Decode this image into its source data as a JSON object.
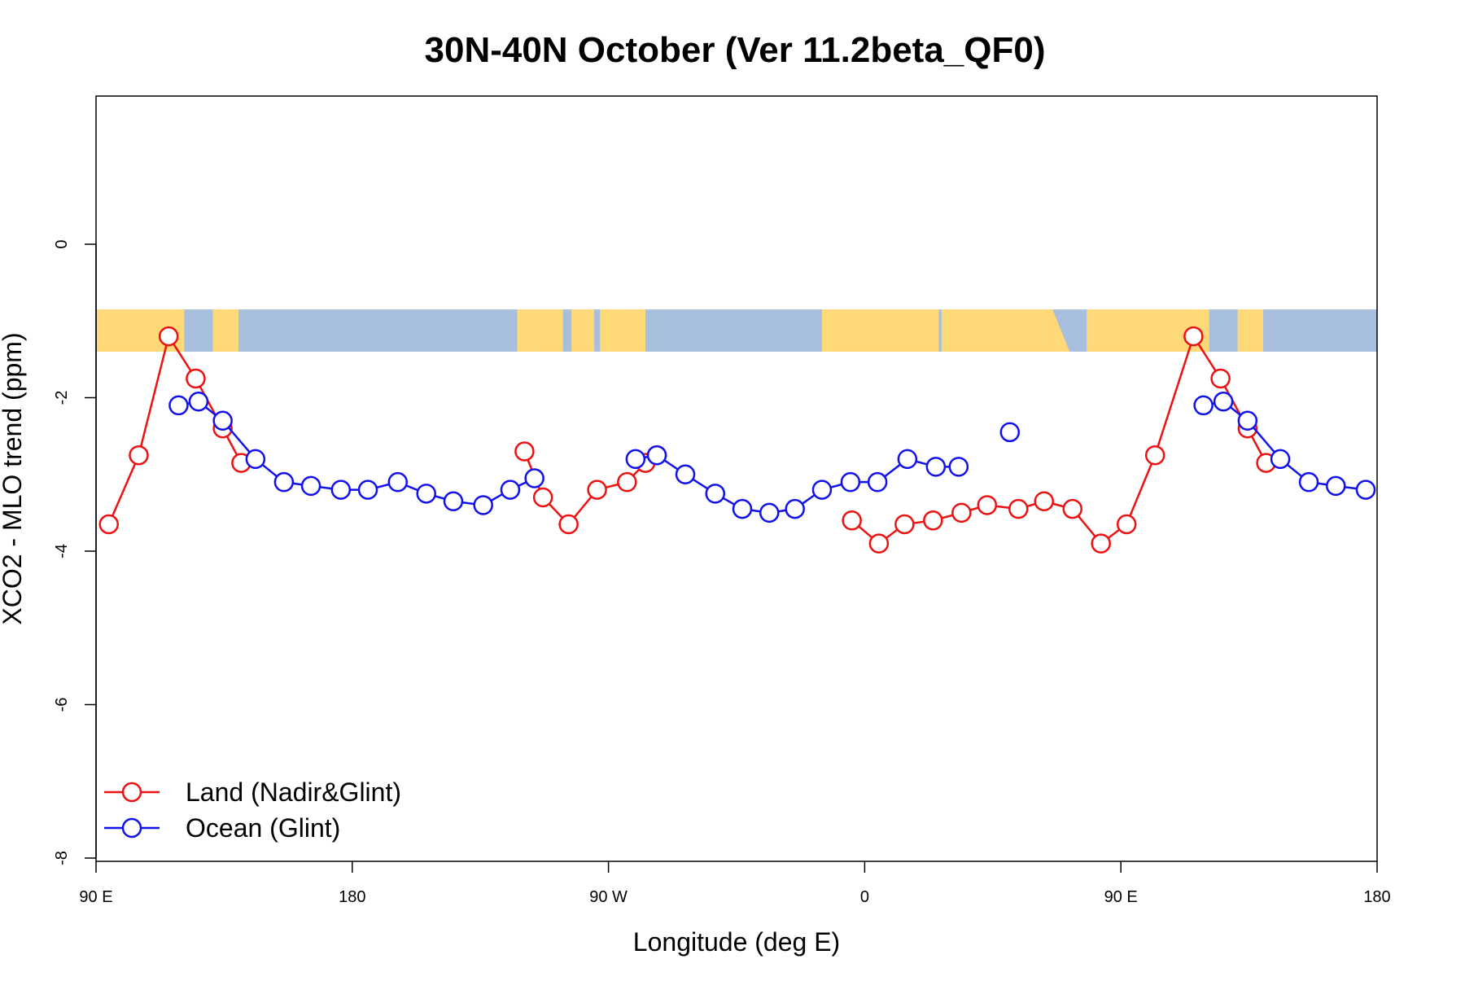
{
  "chart_data": {
    "type": "line",
    "title": "30N-40N October (Ver 11.2beta_QF0)",
    "xlabel": "Longitude (deg E)",
    "ylabel": "XCO2 - MLO trend (ppm)",
    "xlim": [
      90,
      540
    ],
    "ylim": [
      -8,
      2
    ],
    "x_ticks": [
      {
        "value": 90,
        "label": "90 E"
      },
      {
        "value": 180,
        "label": "180"
      },
      {
        "value": 270,
        "label": "90 W"
      },
      {
        "value": 360,
        "label": "0"
      },
      {
        "value": 450,
        "label": "90 E"
      },
      {
        "value": 540,
        "label": "180"
      }
    ],
    "y_ticks": [
      {
        "value": 0,
        "label": "0"
      },
      {
        "value": -2,
        "label": "-2"
      },
      {
        "value": -4,
        "label": "-4"
      },
      {
        "value": -6,
        "label": "-6"
      },
      {
        "value": -8,
        "label": "-8"
      }
    ],
    "grid": false,
    "legend_position": "bottom-left",
    "map_strip": {
      "y_range": [
        -1.4,
        -0.85
      ],
      "land_color": "#FFD978",
      "ocean_color": "#A8BEDD"
    },
    "series": [
      {
        "name": "Land (Nadir&Glint)",
        "color": "#EE1111",
        "segments": [
          [
            [
              94.5,
              -3.65
            ],
            [
              105,
              -2.75
            ],
            [
              115.5,
              -1.2
            ],
            [
              125,
              -1.75
            ],
            [
              134.5,
              -2.4
            ],
            [
              141,
              -2.85
            ]
          ],
          [
            [
              240.5,
              -2.7
            ],
            [
              247,
              -3.3
            ],
            [
              256,
              -3.65
            ],
            [
              266,
              -3.2
            ],
            [
              276.5,
              -3.1
            ],
            [
              283,
              -2.85
            ],
            [
              287,
              -2.75
            ]
          ],
          [
            [
              355.5,
              -3.6
            ],
            [
              365,
              -3.9
            ],
            [
              374,
              -3.65
            ],
            [
              384,
              -3.6
            ],
            [
              394,
              -3.5
            ],
            [
              403,
              -3.4
            ],
            [
              414,
              -3.45
            ],
            [
              423,
              -3.35
            ],
            [
              433,
              -3.45
            ],
            [
              443,
              -3.9
            ],
            [
              452,
              -3.65
            ],
            [
              462,
              -2.75
            ],
            [
              475.5,
              -1.2
            ],
            [
              485,
              -1.75
            ],
            [
              494.5,
              -2.4
            ],
            [
              501,
              -2.85
            ]
          ]
        ]
      },
      {
        "name": "Ocean (Glint)",
        "color": "#1111EE",
        "segments": [
          [
            [
              119,
              -2.1
            ],
            [
              126,
              -2.05
            ],
            [
              134.5,
              -2.3
            ],
            [
              146,
              -2.8
            ],
            [
              156,
              -3.1
            ],
            [
              165.5,
              -3.15
            ],
            [
              176,
              -3.2
            ],
            [
              185.5,
              -3.2
            ],
            [
              196,
              -3.1
            ],
            [
              206,
              -3.25
            ],
            [
              215.5,
              -3.35
            ],
            [
              226,
              -3.4
            ],
            [
              235.5,
              -3.2
            ],
            [
              244,
              -3.05
            ]
          ],
          [
            [
              279.5,
              -2.8
            ],
            [
              287,
              -2.75
            ],
            [
              297,
              -3.0
            ],
            [
              307.5,
              -3.25
            ],
            [
              317,
              -3.45
            ],
            [
              326.5,
              -3.5
            ],
            [
              335.5,
              -3.45
            ],
            [
              345,
              -3.2
            ],
            [
              355,
              -3.1
            ],
            [
              364.5,
              -3.1
            ],
            [
              375,
              -2.8
            ],
            [
              385,
              -2.9
            ],
            [
              393,
              -2.9
            ]
          ],
          [
            [
              411,
              -2.45
            ]
          ],
          [
            [
              479,
              -2.1
            ],
            [
              486,
              -2.05
            ],
            [
              494.5,
              -2.3
            ],
            [
              506,
              -2.8
            ],
            [
              516,
              -3.1
            ],
            [
              525.5,
              -3.15
            ],
            [
              536,
              -3.2
            ]
          ]
        ]
      }
    ]
  }
}
